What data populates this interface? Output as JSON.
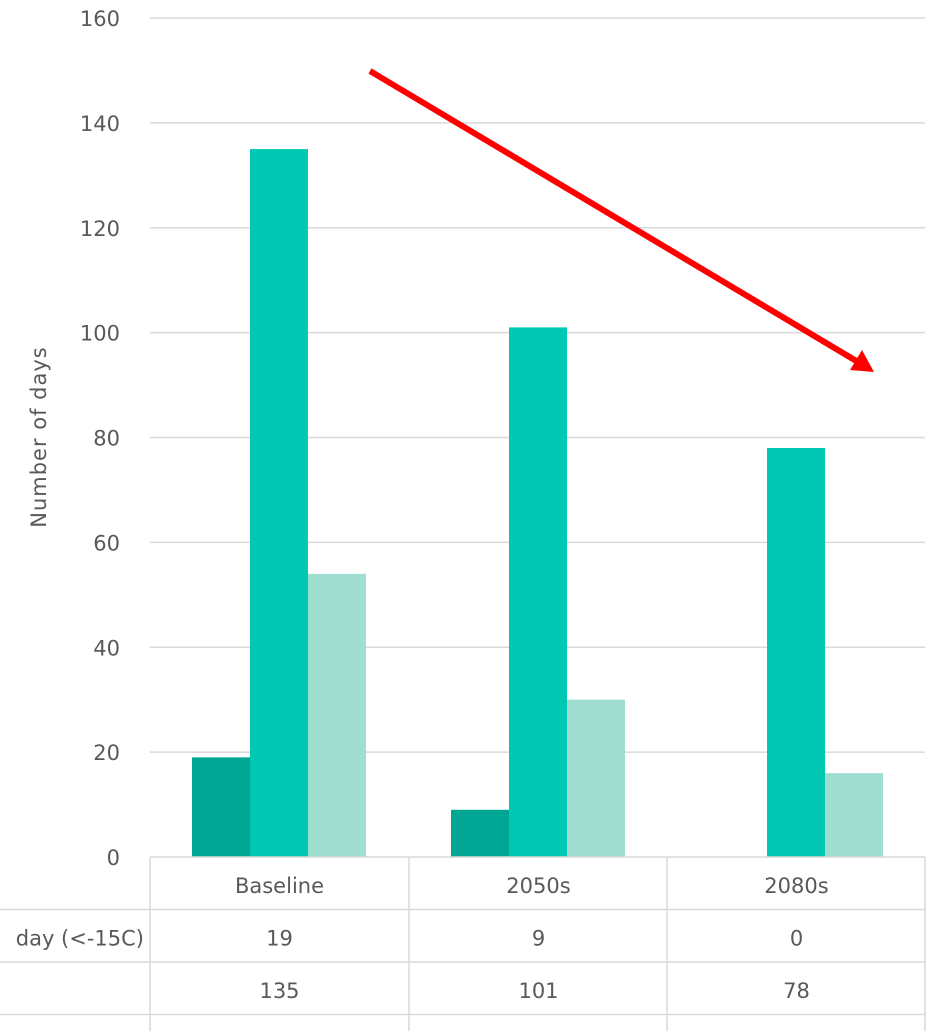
{
  "chart_data": {
    "type": "bar",
    "categories": [
      "Baseline",
      "2050s",
      "2080s"
    ],
    "series": [
      {
        "name": "day (<-15C)",
        "values": [
          19,
          9,
          0
        ],
        "color": "#00a693"
      },
      {
        "name": "",
        "values": [
          135,
          101,
          78
        ],
        "color": "#00c8b3"
      },
      {
        "name": "",
        "values": [
          54,
          30,
          16
        ],
        "color": "#a1ded2"
      }
    ],
    "ylabel": "Number of days",
    "ylim": [
      0,
      160
    ],
    "yticks": [
      0,
      20,
      40,
      60,
      80,
      100,
      120,
      140,
      160
    ],
    "grid": true,
    "data_table": true,
    "annotation": {
      "type": "arrow",
      "direction": "downward trend",
      "color": "#ff0000"
    }
  }
}
